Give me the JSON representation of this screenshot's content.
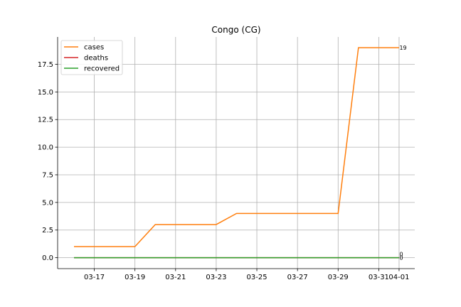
{
  "chart_data": {
    "type": "line",
    "title": "Congo (CG)",
    "xlabel": "",
    "ylabel": "",
    "x": [
      "03-16",
      "03-17",
      "03-18",
      "03-19",
      "03-20",
      "03-21",
      "03-22",
      "03-23",
      "03-24",
      "03-25",
      "03-26",
      "03-27",
      "03-28",
      "03-29",
      "03-30",
      "03-31",
      "04-01"
    ],
    "x_ticks": [
      "03-17",
      "03-19",
      "03-21",
      "03-23",
      "03-25",
      "03-27",
      "03-29",
      "03-31",
      "04-01"
    ],
    "y_ticks": [
      "0.0",
      "2.5",
      "5.0",
      "7.5",
      "10.0",
      "12.5",
      "15.0",
      "17.5"
    ],
    "ylim": [
      -1,
      20
    ],
    "grid": true,
    "legend_position": "top-left",
    "series": [
      {
        "name": "cases",
        "color": "#ff7f0e",
        "values": [
          1,
          1,
          1,
          1,
          3,
          3,
          3,
          3,
          4,
          4,
          4,
          4,
          4,
          4,
          19,
          19,
          19
        ],
        "end_label": "19"
      },
      {
        "name": "deaths",
        "color": "#d62728",
        "values": [
          0,
          0,
          0,
          0,
          0,
          0,
          0,
          0,
          0,
          0,
          0,
          0,
          0,
          0,
          0,
          0,
          0
        ],
        "end_label": "0"
      },
      {
        "name": "recovered",
        "color": "#2ca02c",
        "values": [
          0,
          0,
          0,
          0,
          0,
          0,
          0,
          0,
          0,
          0,
          0,
          0,
          0,
          0,
          0,
          0,
          0
        ],
        "end_label": "0"
      }
    ]
  }
}
